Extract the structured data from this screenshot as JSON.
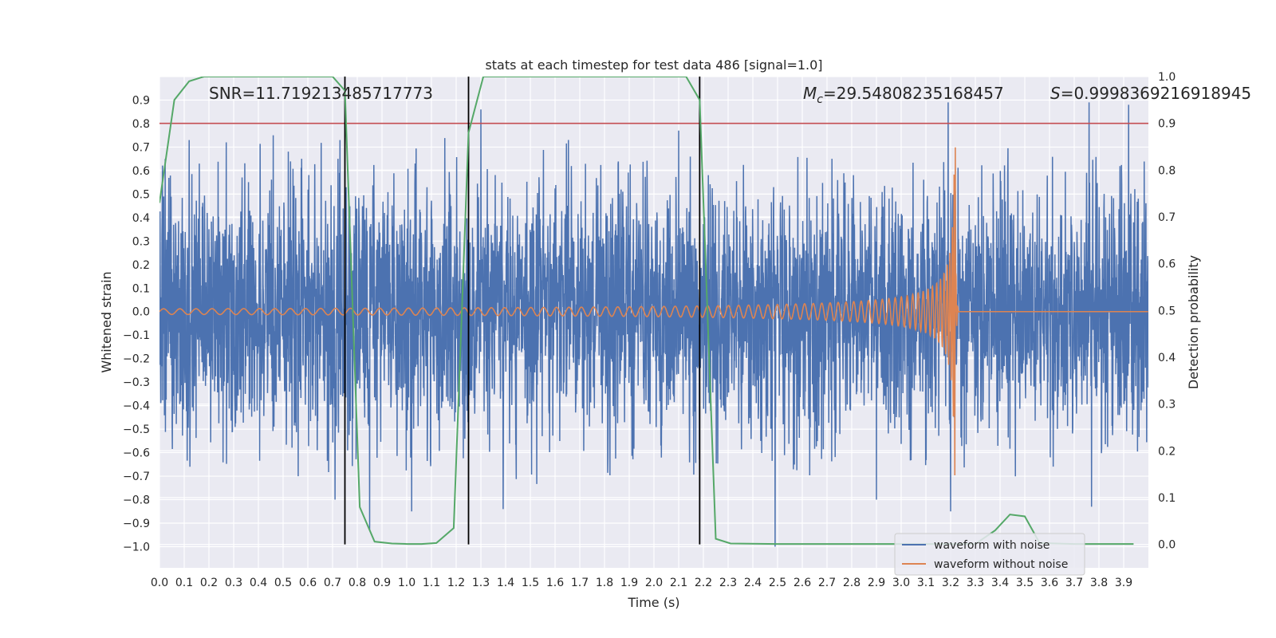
{
  "chart_data": {
    "type": "line",
    "title": "stats at each timestep for test data 486 [signal=1.0]",
    "xlabel": "Time (s)",
    "ylabel": "Whitened strain",
    "ylabel_right": "Detection probability",
    "xlim": [
      0.0,
      4.0
    ],
    "ylim": [
      -1.09,
      1.0
    ],
    "ylim_right": [
      -0.05,
      1.0
    ],
    "x_ticks": [
      0.0,
      0.1,
      0.2,
      0.3,
      0.4,
      0.5,
      0.6,
      0.7,
      0.8,
      0.9,
      1.0,
      1.1,
      1.2,
      1.3,
      1.4,
      1.5,
      1.6,
      1.7,
      1.8,
      1.9,
      2.0,
      2.1,
      2.2,
      2.3,
      2.4,
      2.5,
      2.6,
      2.7,
      2.8,
      2.9,
      3.0,
      3.1,
      3.2,
      3.3,
      3.4,
      3.5,
      3.6,
      3.7,
      3.8,
      3.9
    ],
    "x_tick_labels": [
      "0.0",
      "0.1",
      "0.2",
      "0.3",
      "0.4",
      "0.5",
      "0.6",
      "0.7",
      "0.8",
      "0.9",
      "1.0",
      "1.1",
      "1.2",
      "1.3",
      "1.4",
      "1.5",
      "1.6",
      "1.7",
      "1.8",
      "1.9",
      "2.0",
      "2.1",
      "2.2",
      "2.3",
      "2.4",
      "2.5",
      "2.6",
      "2.7",
      "2.8",
      "2.9",
      "3.0",
      "3.1",
      "3.2",
      "3.3",
      "3.4",
      "3.5",
      "3.6",
      "3.7",
      "3.8",
      "3.9"
    ],
    "y_ticks": [
      0.9,
      0.8,
      0.7,
      0.6,
      0.5,
      0.4,
      0.3,
      0.2,
      0.1,
      0.0,
      -0.1,
      -0.2,
      -0.3,
      -0.4,
      -0.5,
      -0.6,
      -0.7,
      -0.8,
      -0.9,
      -1.0
    ],
    "y_tick_labels": [
      "0.9",
      "0.8",
      "0.7",
      "0.6",
      "0.5",
      "0.4",
      "0.3",
      "0.2",
      "0.1",
      "0.0",
      "−0.1",
      "−0.2",
      "−0.3",
      "−0.4",
      "−0.5",
      "−0.6",
      "−0.7",
      "−0.8",
      "−0.9",
      "−1.0"
    ],
    "y_right_ticks": [
      1.0,
      0.9,
      0.8,
      0.7,
      0.6,
      0.5,
      0.4,
      0.3,
      0.2,
      0.1,
      0.0
    ],
    "y_right_tick_labels": [
      "1.0",
      "0.9",
      "0.8",
      "0.7",
      "0.6",
      "0.5",
      "0.4",
      "0.3",
      "0.2",
      "0.1",
      "0.0"
    ],
    "annotations": {
      "snr": "SNR=11.719213485717773",
      "mc_symbol": "M",
      "mc_sub": "c",
      "mc_value": "=29.54808235168457",
      "s_symbol": "S",
      "s_value": "=0.9998369216918945"
    },
    "threshold": {
      "axis": "right",
      "value": 0.9,
      "color": "#c44e52"
    },
    "vertical_lines": [
      0.75,
      1.25,
      2.185
    ],
    "series": [
      {
        "name": "waveform with noise",
        "color": "#4c72b0",
        "axis": "left",
        "kind": "noise",
        "std": 0.27,
        "spikes": [
          {
            "x": 0.12,
            "y": 0.73
          },
          {
            "x": 0.27,
            "y": 0.72
          },
          {
            "x": 0.46,
            "y": 0.75
          },
          {
            "x": 0.73,
            "y": 0.73
          },
          {
            "x": 1.3,
            "y": 0.86
          },
          {
            "x": 2.1,
            "y": 0.77
          },
          {
            "x": 3.19,
            "y": 0.89
          },
          {
            "x": 3.76,
            "y": 0.89
          },
          {
            "x": 3.92,
            "y": 0.88
          },
          {
            "x": 2.49,
            "y": -1.0
          },
          {
            "x": 0.71,
            "y": -0.8
          },
          {
            "x": 0.85,
            "y": -0.93
          },
          {
            "x": 1.02,
            "y": -0.85
          },
          {
            "x": 3.2,
            "y": -0.85
          },
          {
            "x": 3.77,
            "y": -0.83
          },
          {
            "x": 1.39,
            "y": -0.84
          },
          {
            "x": 2.9,
            "y": -0.8
          }
        ]
      },
      {
        "name": "waveform without noise",
        "color": "#dd8452",
        "axis": "left",
        "kind": "chirp",
        "merger_time": 3.22,
        "base_amplitude": 0.012,
        "peak_amplitude": 0.7
      },
      {
        "name": "detection probability",
        "color": "#55a868",
        "axis": "right",
        "legend": false,
        "x": [
          0.0,
          0.06,
          0.12,
          0.18,
          0.3,
          0.5,
          0.7,
          0.75,
          0.81,
          0.87,
          0.94,
          1.0,
          1.06,
          1.12,
          1.19,
          1.25,
          1.31,
          1.5,
          1.7,
          1.9,
          2.13,
          2.185,
          2.25,
          2.31,
          2.5,
          2.7,
          2.9,
          3.1,
          3.3,
          3.38,
          3.44,
          3.5,
          3.56,
          3.7,
          3.9,
          3.94
        ],
        "y": [
          0.73,
          0.95,
          0.99,
          1.0,
          1.0,
          1.0,
          1.0,
          0.97,
          0.08,
          0.006,
          0.002,
          0.001,
          0.001,
          0.003,
          0.035,
          0.88,
          1.0,
          1.0,
          1.0,
          1.0,
          1.0,
          0.95,
          0.012,
          0.002,
          0.001,
          0.001,
          0.001,
          0.001,
          0.001,
          0.03,
          0.064,
          0.06,
          0.003,
          0.001,
          0.001,
          0.001
        ]
      }
    ],
    "legend": {
      "position": "lower-right",
      "entries": [
        {
          "label": "waveform with noise",
          "color": "#4c72b0"
        },
        {
          "label": "waveform without noise",
          "color": "#dd8452"
        }
      ]
    },
    "grid": true,
    "background": "#eaeaf2"
  }
}
